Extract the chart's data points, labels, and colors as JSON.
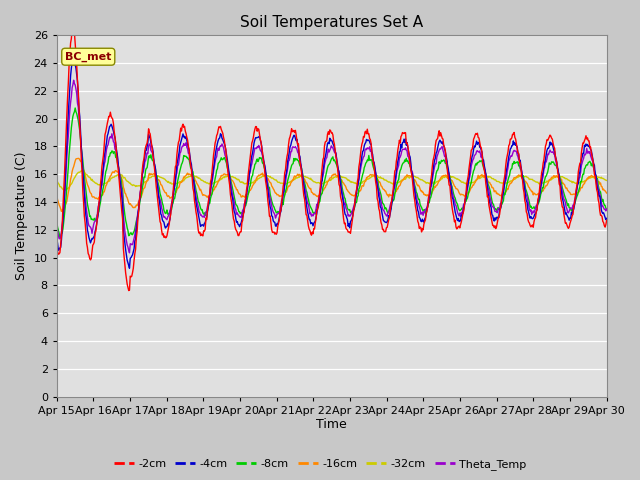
{
  "title": "Soil Temperatures Set A",
  "xlabel": "Time",
  "ylabel": "Soil Temperature (C)",
  "ylim": [
    0,
    26
  ],
  "yticks": [
    0,
    2,
    4,
    6,
    8,
    10,
    12,
    14,
    16,
    18,
    20,
    22,
    24,
    26
  ],
  "fig_bg_color": "#c8c8c8",
  "plot_bg_color": "#e0e0e0",
  "annotation_text": "BC_met",
  "annotation_box_color": "#ffff99",
  "annotation_text_color": "#8b0000",
  "legend_entries": [
    "-2cm",
    "-4cm",
    "-8cm",
    "-16cm",
    "-32cm",
    "Theta_Temp"
  ],
  "line_colors": [
    "#ff0000",
    "#0000cc",
    "#00cc00",
    "#ff8800",
    "#cccc00",
    "#9900cc"
  ],
  "n_days": 15,
  "start_day": 15,
  "points_per_day": 48
}
